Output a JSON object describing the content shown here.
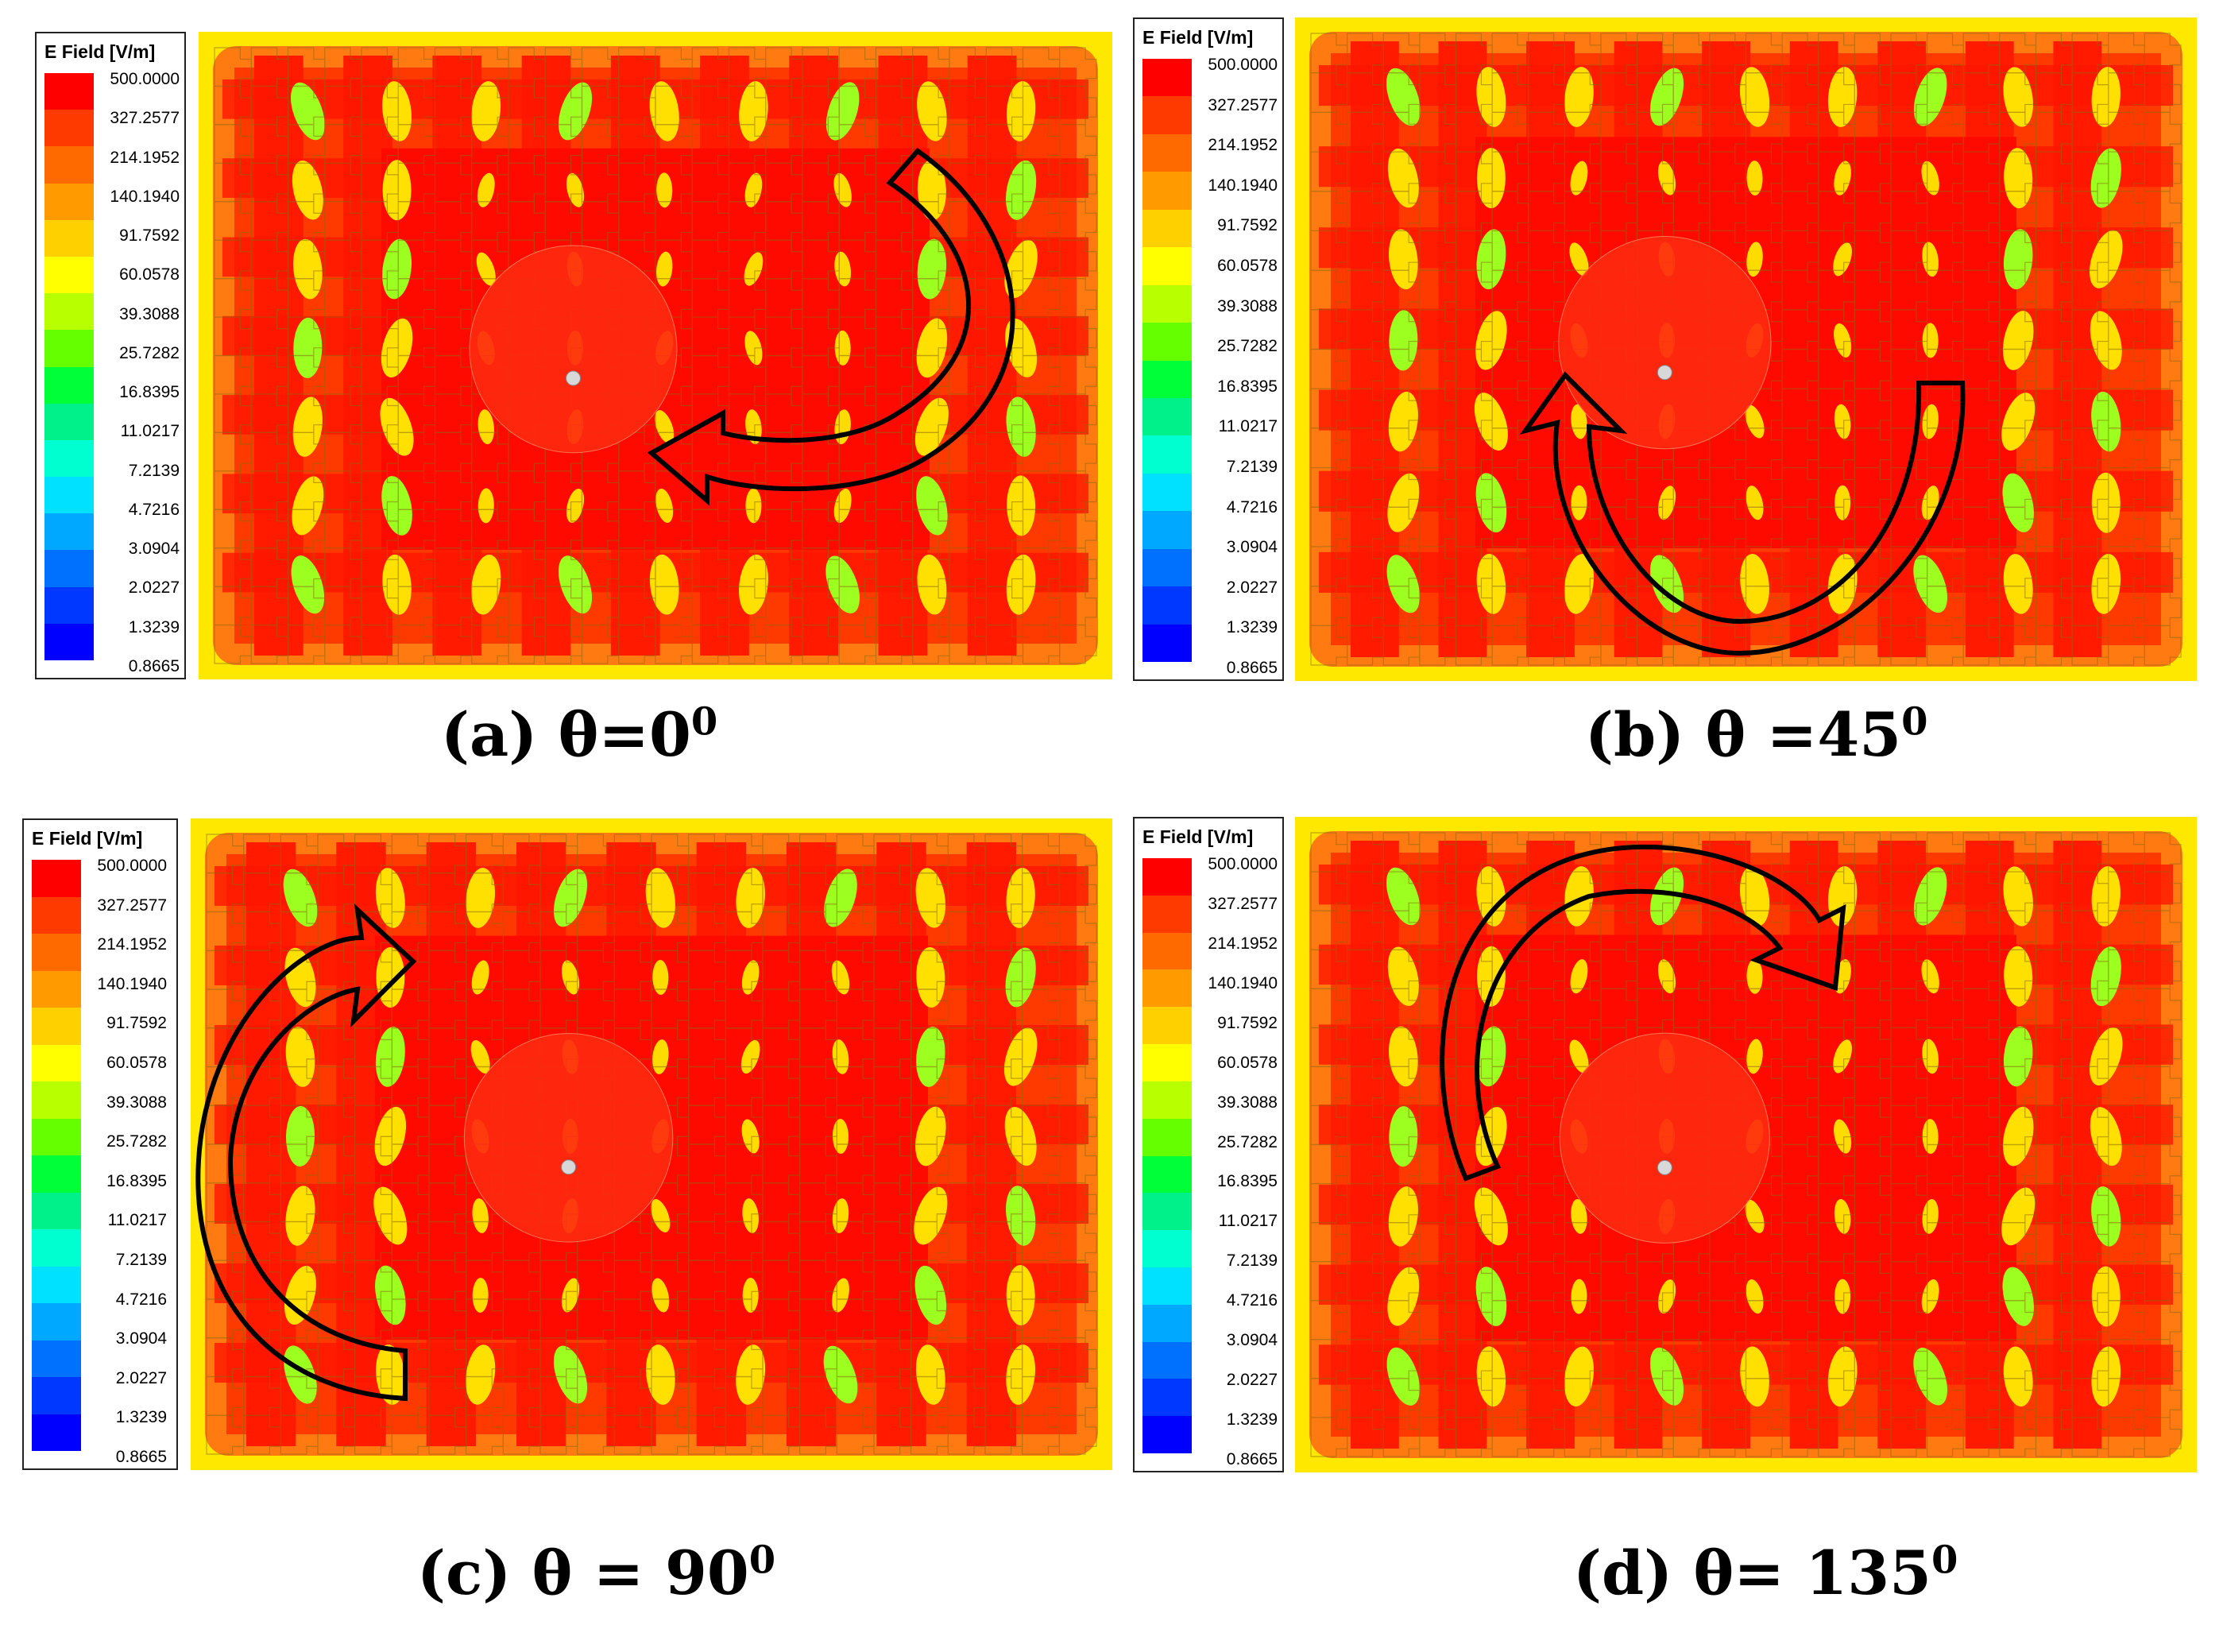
{
  "legend": {
    "title": "E Field [V/m]",
    "values": [
      "500.0000",
      "327.2577",
      "214.1952",
      "140.1940",
      "91.7592",
      "60.0578",
      "39.3088",
      "25.7282",
      "16.8395",
      "11.0217",
      "7.2139",
      "4.7216",
      "3.0904",
      "2.0227",
      "1.3239",
      "0.8665"
    ],
    "colors": [
      "#ff0000",
      "#ff3a00",
      "#ff6a00",
      "#ff9a00",
      "#ffd000",
      "#ffff00",
      "#b8ff00",
      "#66ff00",
      "#00ff38",
      "#00f08a",
      "#00ffd0",
      "#00e0ff",
      "#00a8ff",
      "#0070ff",
      "#0038ff",
      "#0000ff"
    ]
  },
  "panels": [
    {
      "label": "(a) θ=0",
      "sup": "0"
    },
    {
      "label": "(b) θ =45",
      "sup": "0"
    },
    {
      "label": "(c) θ = 90",
      "sup": "0"
    },
    {
      "label": "(d) θ= 135",
      "sup": "0"
    }
  ]
}
